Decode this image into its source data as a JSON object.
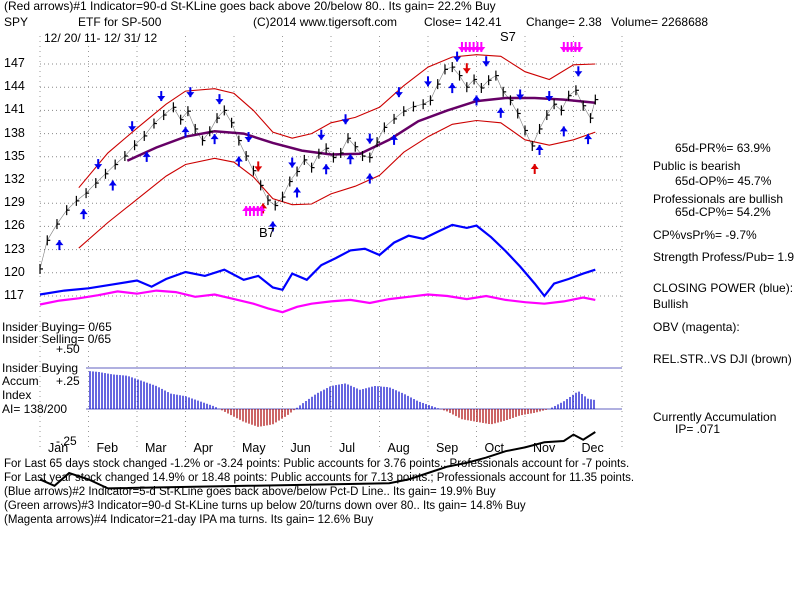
{
  "header": {
    "line1": "(Red arrows)#1 Indicator=90-d St-KLine goes back above 20/below 80.. Its gain= 22.2% Buy",
    "ticker": "SPY",
    "etf_label": "ETF for SP-500",
    "copyright": "(C)2014 www.tigersoft.com",
    "close": "Close= 142.41",
    "change": "Change= 2.38",
    "volume": "Volume= 2268688",
    "date_range": "12/ 20/ 11- 12/ 31/ 12"
  },
  "labels": {
    "s7": "S7",
    "b7": "B7",
    "insider_buying": "Insider Buying= 0/65",
    "insider_selling": "Insider Selling= 0/65",
    "insider_buying2": "Insider Buying",
    "accum_index": "Accum",
    "index": "Index",
    "ai": "AI= 138/200",
    "plus50": "+.50",
    "plus25": "+.25",
    "minus25": "-.25"
  },
  "right_panel": {
    "pr": "65d-PR%= 63.9%",
    "public": "Public is bearish",
    "op": "65d-OP%= 45.7%",
    "professionals": "Professionals are bullish",
    "cp": "65d-CP%= 54.2%",
    "cpvspr": "CP%vsPr%= -9.7%",
    "strength": "Strength Profess/Pub= 1.9",
    "closing_power": "CLOSING POWER (blue):",
    "bullish": "Bullish",
    "obv": "OBV (magenta):",
    "relstr": "REL.STR..VS DJI (brown)",
    "accumulation": "Currently Accumulation",
    "ip": "IP= .071"
  },
  "footer": {
    "line1": "For Last 65 days stock changed -1.2% or -3.24 points: Public accounts for 3.76 points.; Professionals account for -7 points.",
    "line2": "For Last year stock changed 14.9% or 18.48 points: Public accounts for 7.13 points.; Professionals account for 11.35 points.",
    "line3": "(Blue arrows)#2 Indicator=5-d St-KLine goes back above/below Pct-D Line.. Its gain= 19.9% Buy",
    "line4": "(Green arrows)#3 Indicator=90-d St-KLine turns up below 20/turns down over 80.. Its gain= 14.8% Buy",
    "line5": "(Magenta arrows)#4 Indicator=21-day IPA ma turns. Its gain= 12.6% Buy"
  },
  "colors": {
    "price": "#000000",
    "band": "#cc0000",
    "ma": "#660066",
    "closing_power": "#0000ff",
    "obv": "#ff00ff",
    "accum_pos": "#0000cc",
    "accum_neg": "#aa0000",
    "buy_arrow": "#0000ee",
    "sell_arrow": "#dd0000",
    "magenta_arrow": "#ff00ff"
  },
  "chart_data": {
    "type": "line",
    "title": "SPY ETF for SP-500",
    "months": [
      "Jan",
      "Feb",
      "Mar",
      "Apr",
      "May",
      "Jun",
      "Jul",
      "Aug",
      "Sep",
      "Oct",
      "Nov",
      "Dec"
    ],
    "price_ticks": [
      147,
      144,
      141,
      138,
      135,
      132,
      129,
      126,
      123,
      120,
      117
    ],
    "ylim": [
      115.5,
      149
    ],
    "price_series": [
      {
        "x": 0.0,
        "y": 120.5
      },
      {
        "x": 0.15,
        "y": 124.2
      },
      {
        "x": 0.35,
        "y": 126.3
      },
      {
        "x": 0.55,
        "y": 128.1
      },
      {
        "x": 0.75,
        "y": 129.3
      },
      {
        "x": 0.95,
        "y": 130.3
      },
      {
        "x": 1.15,
        "y": 131.6
      },
      {
        "x": 1.35,
        "y": 132.8
      },
      {
        "x": 1.55,
        "y": 134.0
      },
      {
        "x": 1.75,
        "y": 135.1
      },
      {
        "x": 1.95,
        "y": 136.5
      },
      {
        "x": 2.15,
        "y": 137.7
      },
      {
        "x": 2.35,
        "y": 139.3
      },
      {
        "x": 2.55,
        "y": 140.4
      },
      {
        "x": 2.75,
        "y": 141.4
      },
      {
        "x": 2.9,
        "y": 139.8
      },
      {
        "x": 3.05,
        "y": 140.9
      },
      {
        "x": 3.2,
        "y": 138.6
      },
      {
        "x": 3.35,
        "y": 137.1
      },
      {
        "x": 3.5,
        "y": 138.3
      },
      {
        "x": 3.65,
        "y": 140.0
      },
      {
        "x": 3.8,
        "y": 141.0
      },
      {
        "x": 3.95,
        "y": 139.4
      },
      {
        "x": 4.1,
        "y": 137.1
      },
      {
        "x": 4.25,
        "y": 135.1
      },
      {
        "x": 4.4,
        "y": 133.2
      },
      {
        "x": 4.55,
        "y": 131.3
      },
      {
        "x": 4.7,
        "y": 129.4
      },
      {
        "x": 4.85,
        "y": 128.7
      },
      {
        "x": 5.0,
        "y": 129.8
      },
      {
        "x": 5.15,
        "y": 131.8
      },
      {
        "x": 5.3,
        "y": 133.1
      },
      {
        "x": 5.45,
        "y": 134.6
      },
      {
        "x": 5.6,
        "y": 133.6
      },
      {
        "x": 5.75,
        "y": 135.4
      },
      {
        "x": 5.9,
        "y": 136.1
      },
      {
        "x": 6.05,
        "y": 134.9
      },
      {
        "x": 6.2,
        "y": 135.5
      },
      {
        "x": 6.35,
        "y": 137.4
      },
      {
        "x": 6.5,
        "y": 136.3
      },
      {
        "x": 6.65,
        "y": 135.1
      },
      {
        "x": 6.8,
        "y": 134.9
      },
      {
        "x": 6.95,
        "y": 136.9
      },
      {
        "x": 7.1,
        "y": 138.8
      },
      {
        "x": 7.3,
        "y": 139.9
      },
      {
        "x": 7.5,
        "y": 140.9
      },
      {
        "x": 7.7,
        "y": 141.5
      },
      {
        "x": 7.9,
        "y": 141.8
      },
      {
        "x": 8.05,
        "y": 142.3
      },
      {
        "x": 8.2,
        "y": 144.4
      },
      {
        "x": 8.35,
        "y": 146.3
      },
      {
        "x": 8.5,
        "y": 146.6
      },
      {
        "x": 8.65,
        "y": 145.5
      },
      {
        "x": 8.8,
        "y": 144.0
      },
      {
        "x": 8.95,
        "y": 145.0
      },
      {
        "x": 9.1,
        "y": 143.9
      },
      {
        "x": 9.25,
        "y": 144.9
      },
      {
        "x": 9.4,
        "y": 145.5
      },
      {
        "x": 9.55,
        "y": 143.4
      },
      {
        "x": 9.7,
        "y": 142.3
      },
      {
        "x": 9.85,
        "y": 140.6
      },
      {
        "x": 10.0,
        "y": 138.4
      },
      {
        "x": 10.15,
        "y": 136.4
      },
      {
        "x": 10.3,
        "y": 138.6
      },
      {
        "x": 10.45,
        "y": 140.4
      },
      {
        "x": 10.6,
        "y": 141.8
      },
      {
        "x": 10.75,
        "y": 141.0
      },
      {
        "x": 10.9,
        "y": 142.9
      },
      {
        "x": 11.05,
        "y": 143.6
      },
      {
        "x": 11.2,
        "y": 141.6
      },
      {
        "x": 11.35,
        "y": 140.0
      },
      {
        "x": 11.45,
        "y": 142.4
      }
    ],
    "upper_band": [
      {
        "x": 0.8,
        "y": 131.0
      },
      {
        "x": 1.4,
        "y": 135.5
      },
      {
        "x": 2.0,
        "y": 138.7
      },
      {
        "x": 2.6,
        "y": 141.8
      },
      {
        "x": 3.0,
        "y": 143.5
      },
      {
        "x": 3.6,
        "y": 143.8
      },
      {
        "x": 4.0,
        "y": 143.2
      },
      {
        "x": 4.4,
        "y": 141.0
      },
      {
        "x": 4.8,
        "y": 138.2
      },
      {
        "x": 5.2,
        "y": 137.4
      },
      {
        "x": 5.6,
        "y": 138.0
      },
      {
        "x": 6.0,
        "y": 139.4
      },
      {
        "x": 6.5,
        "y": 140.1
      },
      {
        "x": 7.0,
        "y": 141.4
      },
      {
        "x": 7.5,
        "y": 144.2
      },
      {
        "x": 8.0,
        "y": 146.6
      },
      {
        "x": 8.5,
        "y": 147.9
      },
      {
        "x": 9.0,
        "y": 148.2
      },
      {
        "x": 9.5,
        "y": 148.0
      },
      {
        "x": 10.0,
        "y": 146.0
      },
      {
        "x": 10.5,
        "y": 145.0
      },
      {
        "x": 11.0,
        "y": 146.9
      },
      {
        "x": 11.45,
        "y": 147.0
      }
    ],
    "lower_band": [
      {
        "x": 0.8,
        "y": 123.2
      },
      {
        "x": 1.4,
        "y": 126.5
      },
      {
        "x": 2.0,
        "y": 129.5
      },
      {
        "x": 2.6,
        "y": 132.5
      },
      {
        "x": 3.0,
        "y": 134.0
      },
      {
        "x": 3.6,
        "y": 134.8
      },
      {
        "x": 4.0,
        "y": 134.3
      },
      {
        "x": 4.4,
        "y": 132.4
      },
      {
        "x": 4.8,
        "y": 129.6
      },
      {
        "x": 5.2,
        "y": 128.8
      },
      {
        "x": 5.6,
        "y": 128.9
      },
      {
        "x": 6.0,
        "y": 130.2
      },
      {
        "x": 6.5,
        "y": 131.2
      },
      {
        "x": 7.0,
        "y": 132.6
      },
      {
        "x": 7.5,
        "y": 135.6
      },
      {
        "x": 8.0,
        "y": 137.6
      },
      {
        "x": 8.5,
        "y": 139.2
      },
      {
        "x": 9.0,
        "y": 139.7
      },
      {
        "x": 9.5,
        "y": 139.4
      },
      {
        "x": 10.0,
        "y": 137.2
      },
      {
        "x": 10.5,
        "y": 136.5
      },
      {
        "x": 11.0,
        "y": 137.2
      },
      {
        "x": 11.45,
        "y": 138.2
      }
    ],
    "ma_series": [
      {
        "x": 1.8,
        "y": 134.5
      },
      {
        "x": 2.4,
        "y": 136.2
      },
      {
        "x": 3.0,
        "y": 137.6
      },
      {
        "x": 3.6,
        "y": 138.3
      },
      {
        "x": 4.2,
        "y": 138.0
      },
      {
        "x": 4.8,
        "y": 136.8
      },
      {
        "x": 5.4,
        "y": 135.8
      },
      {
        "x": 6.0,
        "y": 135.3
      },
      {
        "x": 6.6,
        "y": 135.4
      },
      {
        "x": 7.2,
        "y": 137.2
      },
      {
        "x": 7.8,
        "y": 139.6
      },
      {
        "x": 8.4,
        "y": 141.0
      },
      {
        "x": 9.0,
        "y": 142.2
      },
      {
        "x": 9.6,
        "y": 142.6
      },
      {
        "x": 10.2,
        "y": 142.6
      },
      {
        "x": 10.8,
        "y": 142.4
      },
      {
        "x": 11.45,
        "y": 142.0
      }
    ],
    "closing_power": [
      {
        "x": 0.0,
        "y": 117.2
      },
      {
        "x": 0.5,
        "y": 117.7
      },
      {
        "x": 1.0,
        "y": 118.0
      },
      {
        "x": 1.5,
        "y": 118.5
      },
      {
        "x": 2.0,
        "y": 119.0
      },
      {
        "x": 2.3,
        "y": 118.2
      },
      {
        "x": 2.6,
        "y": 119.2
      },
      {
        "x": 3.0,
        "y": 120.1
      },
      {
        "x": 3.4,
        "y": 119.6
      },
      {
        "x": 3.8,
        "y": 120.4
      },
      {
        "x": 4.2,
        "y": 119.1
      },
      {
        "x": 4.5,
        "y": 119.6
      },
      {
        "x": 4.8,
        "y": 118.1
      },
      {
        "x": 5.0,
        "y": 117.8
      },
      {
        "x": 5.2,
        "y": 119.9
      },
      {
        "x": 5.5,
        "y": 119.1
      },
      {
        "x": 5.8,
        "y": 121.0
      },
      {
        "x": 6.1,
        "y": 121.9
      },
      {
        "x": 6.4,
        "y": 122.9
      },
      {
        "x": 6.7,
        "y": 123.1
      },
      {
        "x": 7.0,
        "y": 122.3
      },
      {
        "x": 7.3,
        "y": 123.9
      },
      {
        "x": 7.6,
        "y": 124.8
      },
      {
        "x": 7.9,
        "y": 124.4
      },
      {
        "x": 8.2,
        "y": 125.3
      },
      {
        "x": 8.5,
        "y": 126.2
      },
      {
        "x": 8.8,
        "y": 125.8
      },
      {
        "x": 9.0,
        "y": 126.1
      },
      {
        "x": 9.3,
        "y": 124.6
      },
      {
        "x": 9.6,
        "y": 122.8
      },
      {
        "x": 9.9,
        "y": 120.8
      },
      {
        "x": 10.2,
        "y": 118.6
      },
      {
        "x": 10.4,
        "y": 117.0
      },
      {
        "x": 10.6,
        "y": 118.6
      },
      {
        "x": 10.9,
        "y": 119.2
      },
      {
        "x": 11.2,
        "y": 119.9
      },
      {
        "x": 11.45,
        "y": 120.4
      }
    ],
    "obv": [
      {
        "x": 0.0,
        "y": 115.9
      },
      {
        "x": 0.4,
        "y": 116.4
      },
      {
        "x": 0.8,
        "y": 116.7
      },
      {
        "x": 1.2,
        "y": 117.1
      },
      {
        "x": 1.6,
        "y": 117.6
      },
      {
        "x": 2.0,
        "y": 117.3
      },
      {
        "x": 2.4,
        "y": 117.7
      },
      {
        "x": 2.8,
        "y": 117.5
      },
      {
        "x": 3.2,
        "y": 116.9
      },
      {
        "x": 3.6,
        "y": 117.2
      },
      {
        "x": 4.0,
        "y": 116.6
      },
      {
        "x": 4.4,
        "y": 116.0
      },
      {
        "x": 4.7,
        "y": 115.4
      },
      {
        "x": 5.0,
        "y": 114.9
      },
      {
        "x": 5.3,
        "y": 115.6
      },
      {
        "x": 5.6,
        "y": 116.0
      },
      {
        "x": 6.0,
        "y": 116.3
      },
      {
        "x": 6.4,
        "y": 116.5
      },
      {
        "x": 6.8,
        "y": 116.1
      },
      {
        "x": 7.2,
        "y": 116.6
      },
      {
        "x": 7.6,
        "y": 116.9
      },
      {
        "x": 8.0,
        "y": 117.2
      },
      {
        "x": 8.4,
        "y": 117.0
      },
      {
        "x": 8.8,
        "y": 116.6
      },
      {
        "x": 9.2,
        "y": 117.0
      },
      {
        "x": 9.6,
        "y": 116.5
      },
      {
        "x": 10.0,
        "y": 116.2
      },
      {
        "x": 10.4,
        "y": 116.0
      },
      {
        "x": 10.8,
        "y": 116.3
      },
      {
        "x": 11.2,
        "y": 116.8
      },
      {
        "x": 11.45,
        "y": 116.5
      }
    ],
    "accumulation": [
      {
        "x": 0.3,
        "y": 0.22
      },
      {
        "x": 0.6,
        "y": 0.28
      },
      {
        "x": 0.9,
        "y": 0.3
      },
      {
        "x": 1.2,
        "y": 0.29
      },
      {
        "x": 1.5,
        "y": 0.27
      },
      {
        "x": 1.8,
        "y": 0.26
      },
      {
        "x": 2.1,
        "y": 0.22
      },
      {
        "x": 2.4,
        "y": 0.18
      },
      {
        "x": 2.7,
        "y": 0.12
      },
      {
        "x": 3.0,
        "y": 0.1
      },
      {
        "x": 3.3,
        "y": 0.06
      },
      {
        "x": 3.6,
        "y": 0.02
      },
      {
        "x": 3.9,
        "y": -0.04
      },
      {
        "x": 4.2,
        "y": -0.1
      },
      {
        "x": 4.5,
        "y": -0.14
      },
      {
        "x": 4.8,
        "y": -0.12
      },
      {
        "x": 5.1,
        "y": -0.05
      },
      {
        "x": 5.4,
        "y": 0.04
      },
      {
        "x": 5.7,
        "y": 0.12
      },
      {
        "x": 6.0,
        "y": 0.18
      },
      {
        "x": 6.3,
        "y": 0.2
      },
      {
        "x": 6.6,
        "y": 0.15
      },
      {
        "x": 6.9,
        "y": 0.18
      },
      {
        "x": 7.2,
        "y": 0.17
      },
      {
        "x": 7.5,
        "y": 0.12
      },
      {
        "x": 7.8,
        "y": 0.06
      },
      {
        "x": 8.1,
        "y": 0.02
      },
      {
        "x": 8.4,
        "y": -0.02
      },
      {
        "x": 8.7,
        "y": -0.08
      },
      {
        "x": 9.0,
        "y": -0.1
      },
      {
        "x": 9.3,
        "y": -0.12
      },
      {
        "x": 9.6,
        "y": -0.09
      },
      {
        "x": 9.9,
        "y": -0.05
      },
      {
        "x": 10.2,
        "y": -0.03
      },
      {
        "x": 10.5,
        "y": 0.0
      },
      {
        "x": 10.8,
        "y": 0.06
      },
      {
        "x": 11.1,
        "y": 0.14
      },
      {
        "x": 11.3,
        "y": 0.08
      },
      {
        "x": 11.45,
        "y": 0.07
      }
    ],
    "rel_str": [
      {
        "x": 0.0,
        "y": -0.55
      },
      {
        "x": 0.3,
        "y": -0.6
      },
      {
        "x": 0.6,
        "y": -0.5
      },
      {
        "x": 1.0,
        "y": -0.55
      },
      {
        "x": 1.4,
        "y": -0.62
      },
      {
        "x": 7.2,
        "y": -0.58
      },
      {
        "x": 7.6,
        "y": -0.55
      },
      {
        "x": 8.0,
        "y": -0.5
      },
      {
        "x": 8.4,
        "y": -0.45
      },
      {
        "x": 8.8,
        "y": -0.42
      },
      {
        "x": 9.2,
        "y": -0.38
      },
      {
        "x": 9.6,
        "y": -0.33
      },
      {
        "x": 10.0,
        "y": -0.3
      },
      {
        "x": 10.4,
        "y": -0.26
      },
      {
        "x": 10.8,
        "y": -0.25
      },
      {
        "x": 11.0,
        "y": -0.2
      },
      {
        "x": 11.2,
        "y": -0.24
      },
      {
        "x": 11.45,
        "y": -0.18
      }
    ],
    "buy_arrows_x": [
      0.4,
      0.9,
      1.5,
      2.2,
      3.0,
      3.6,
      4.1,
      4.8,
      5.3,
      5.9,
      6.4,
      6.8,
      7.3,
      8.5,
      9.0,
      9.5,
      10.3,
      10.8,
      11.3
    ],
    "sell_arrows_x": [
      1.2,
      1.9,
      2.5,
      3.1,
      3.7,
      4.3,
      5.2,
      5.8,
      6.3,
      6.8,
      7.4,
      8.0,
      8.6,
      9.2,
      9.9,
      10.5,
      11.1
    ],
    "red_down_x": [
      4.5,
      8.8
    ],
    "red_up_x": [
      4.6,
      10.2
    ],
    "magenta_up_x": [
      4.25,
      4.33,
      4.41,
      4.49,
      4.57
    ],
    "magenta_down_x": [
      8.7,
      8.78,
      8.86,
      8.94,
      9.02,
      9.1,
      10.8,
      10.88,
      10.96,
      11.04,
      11.12
    ]
  }
}
